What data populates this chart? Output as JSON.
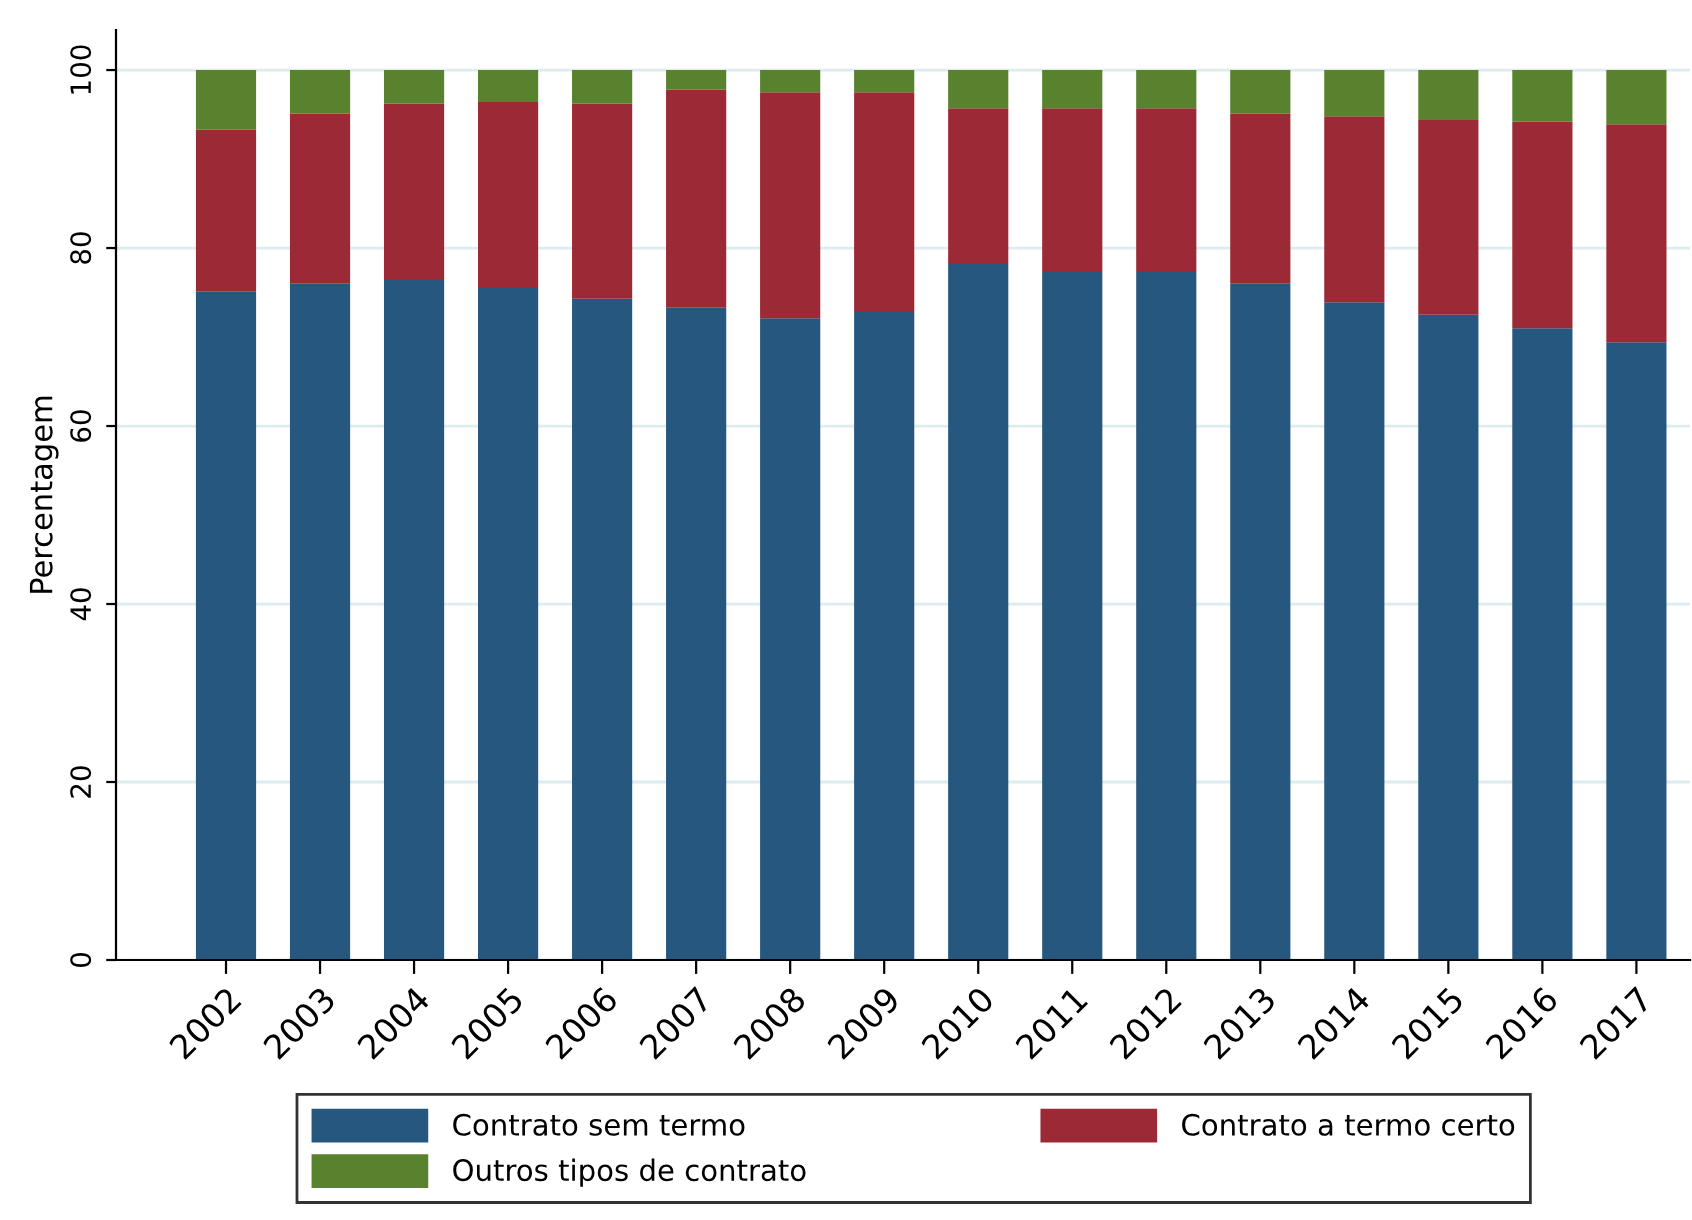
{
  "chart_data": {
    "type": "bar",
    "stacked": true,
    "ylabel": "Percentagem",
    "categories": [
      "2002",
      "2003",
      "2004",
      "2005",
      "2006",
      "2007",
      "2008",
      "2009",
      "2010",
      "2011",
      "2012",
      "2013",
      "2014",
      "2015",
      "2016",
      "2017"
    ],
    "series": [
      {
        "name": "Contrato sem termo",
        "color": "#26577e",
        "values": [
          75.1,
          76.0,
          76.4,
          75.5,
          74.3,
          73.3,
          72.1,
          72.8,
          78.2,
          77.3,
          77.3,
          76.0,
          73.9,
          72.5,
          71.0,
          69.4
        ]
      },
      {
        "name": "Contrato a termo certo",
        "color": "#9b2a36",
        "values": [
          18.2,
          19.1,
          19.8,
          20.9,
          21.9,
          24.5,
          25.4,
          24.7,
          17.5,
          18.4,
          18.4,
          19.1,
          20.9,
          21.9,
          23.2,
          24.5
        ]
      },
      {
        "name": "Outros tipos de contrato",
        "color": "#58822e",
        "values": [
          6.7,
          4.9,
          3.8,
          3.6,
          3.8,
          2.2,
          2.5,
          2.5,
          4.3,
          4.3,
          4.3,
          4.9,
          5.2,
          5.6,
          5.8,
          6.1
        ]
      }
    ],
    "ylim": [
      0,
      104.5
    ],
    "yticks": [
      0,
      20,
      40,
      60,
      80,
      100
    ],
    "grid": "y",
    "legend": "bottom"
  }
}
